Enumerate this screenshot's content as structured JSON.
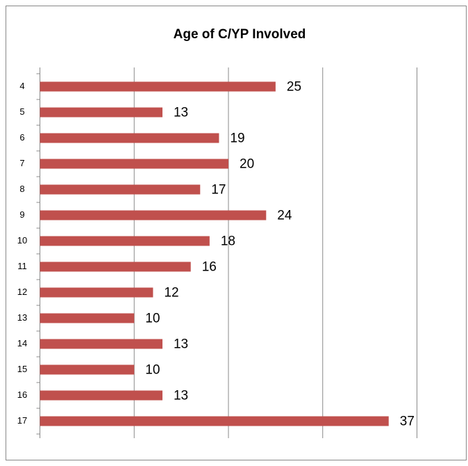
{
  "chart_data": {
    "type": "bar",
    "orientation": "horizontal",
    "title": "Age of C/YP Involved",
    "categories": [
      "4",
      "5",
      "6",
      "7",
      "8",
      "9",
      "10",
      "11",
      "12",
      "13",
      "14",
      "15",
      "16",
      "17"
    ],
    "values": [
      25,
      13,
      19,
      20,
      17,
      24,
      18,
      16,
      12,
      10,
      13,
      10,
      13,
      37
    ],
    "color": "#c0504d",
    "xlim": [
      0,
      40
    ],
    "xticks": [
      0,
      10,
      20,
      30,
      40
    ],
    "grid": true
  }
}
